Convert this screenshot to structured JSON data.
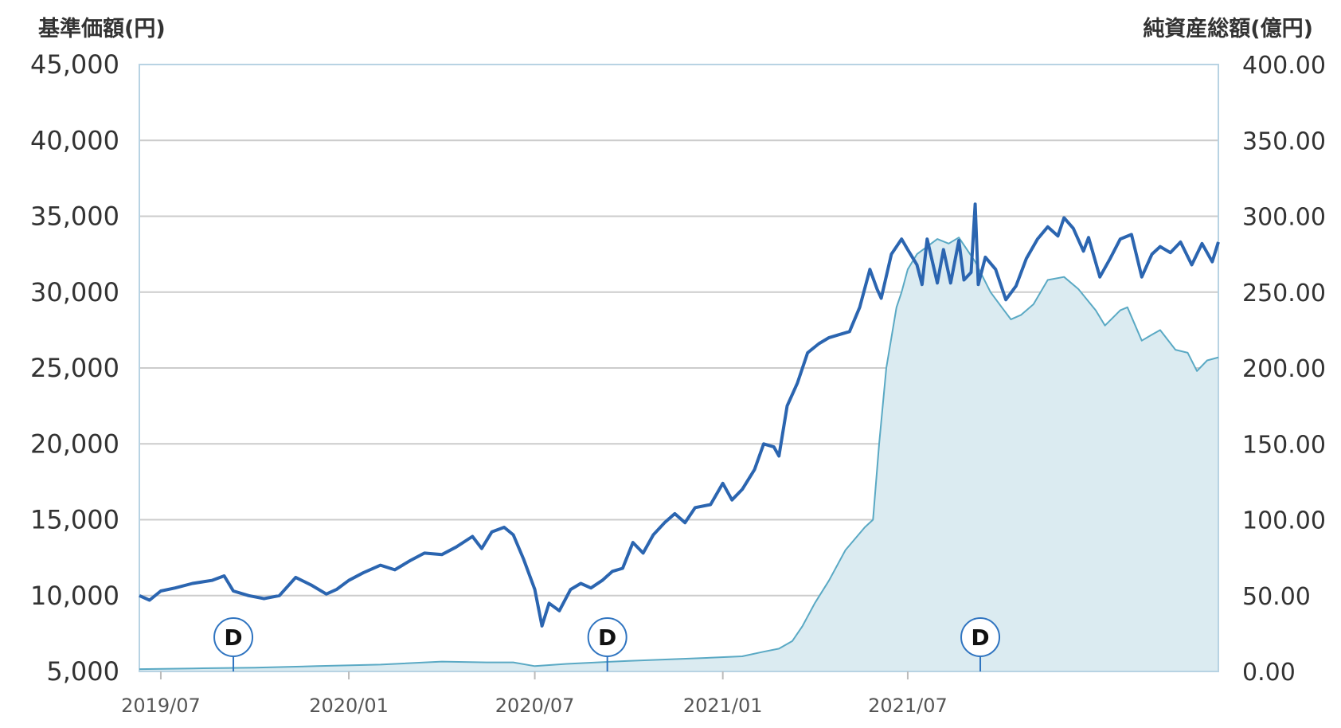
{
  "chart_data": {
    "type": "line",
    "left_axis_title": "基準価額(円)",
    "right_axis_title": "純資産総額(億円)",
    "left_ticks": [
      "45,000",
      "40,000",
      "35,000",
      "30,000",
      "25,000",
      "20,000",
      "15,000",
      "10,000",
      "5,000"
    ],
    "right_ticks": [
      "400.00",
      "350.00",
      "300.00",
      "250.00",
      "200.00",
      "150.00",
      "100.00",
      "50.00",
      "0.00"
    ],
    "x_ticks": [
      "2019/07",
      "2020/01",
      "2020/07",
      "2021/01",
      "2021/07"
    ],
    "left_ylim": [
      5000,
      45000
    ],
    "right_ylim": [
      0,
      400
    ],
    "grid": true,
    "dividend_marker_label": "D",
    "dividend_markers": [
      "2019/09",
      "2020/09",
      "2021/09"
    ],
    "colors": {
      "nav_line": "#2b65b0",
      "assets_line": "#5aa9c4",
      "assets_fill": "#dbebf1",
      "grid": "#cccccc",
      "frame": "#b8d3e3",
      "marker_stroke": "#2f74c0"
    },
    "series": [
      {
        "axis": "left",
        "points": [
          [
            "2019/06/10",
            10000
          ],
          [
            "2019/06/20",
            9700
          ],
          [
            "2019/07/01",
            10300
          ],
          [
            "2019/07/15",
            10500
          ],
          [
            "2019/08/01",
            10800
          ],
          [
            "2019/08/20",
            11000
          ],
          [
            "2019/09/01",
            11300
          ],
          [
            "2019/09/10",
            10300
          ],
          [
            "2019/09/25",
            10000
          ],
          [
            "2019/10/10",
            9800
          ],
          [
            "2019/10/25",
            10000
          ],
          [
            "2019/11/10",
            11200
          ],
          [
            "2019/11/25",
            10700
          ],
          [
            "2019/12/10",
            10100
          ],
          [
            "2019/12/20",
            10400
          ],
          [
            "2020/01/01",
            11000
          ],
          [
            "2020/01/15",
            11500
          ],
          [
            "2020/02/01",
            12000
          ],
          [
            "2020/02/15",
            11700
          ],
          [
            "2020/03/01",
            12300
          ],
          [
            "2020/03/15",
            12800
          ],
          [
            "2020/04/01",
            12700
          ],
          [
            "2020/04/15",
            13200
          ],
          [
            "2020/05/01",
            13900
          ],
          [
            "2020/05/10",
            13100
          ],
          [
            "2020/05/20",
            14200
          ],
          [
            "2020/06/01",
            14500
          ],
          [
            "2020/06/10",
            14000
          ],
          [
            "2020/06/20",
            12400
          ],
          [
            "2020/07/01",
            10400
          ],
          [
            "2020/07/08",
            8000
          ],
          [
            "2020/07/15",
            9500
          ],
          [
            "2020/07/25",
            9000
          ],
          [
            "2020/08/05",
            10400
          ],
          [
            "2020/08/15",
            10800
          ],
          [
            "2020/08/25",
            10500
          ],
          [
            "2020/09/05",
            11000
          ],
          [
            "2020/09/15",
            11600
          ],
          [
            "2020/09/25",
            11800
          ],
          [
            "2020/10/05",
            13500
          ],
          [
            "2020/10/15",
            12800
          ],
          [
            "2020/10/25",
            14000
          ],
          [
            "2020/11/05",
            14800
          ],
          [
            "2020/11/15",
            15400
          ],
          [
            "2020/11/25",
            14800
          ],
          [
            "2020/12/05",
            15800
          ],
          [
            "2020/12/20",
            16000
          ],
          [
            "2021/01/01",
            17400
          ],
          [
            "2021/01/10",
            16300
          ],
          [
            "2021/01/20",
            17000
          ],
          [
            "2021/02/01",
            18300
          ],
          [
            "2021/02/10",
            20000
          ],
          [
            "2021/02/20",
            19800
          ],
          [
            "2021/02/25",
            19200
          ],
          [
            "2021/03/05",
            22500
          ],
          [
            "2021/03/15",
            24000
          ],
          [
            "2021/03/25",
            26000
          ],
          [
            "2021/04/05",
            26600
          ],
          [
            "2021/04/15",
            27000
          ],
          [
            "2021/04/25",
            27200
          ],
          [
            "2021/05/05",
            27400
          ],
          [
            "2021/05/15",
            29000
          ],
          [
            "2021/05/25",
            31500
          ],
          [
            "2021/06/01",
            30200
          ],
          [
            "2021/06/05",
            29600
          ],
          [
            "2021/06/15",
            32500
          ],
          [
            "2021/06/25",
            33500
          ],
          [
            "2021/07/01",
            32800
          ],
          [
            "2021/07/10",
            31800
          ],
          [
            "2021/07/15",
            30500
          ],
          [
            "2021/07/20",
            33500
          ],
          [
            "2021/07/30",
            30600
          ],
          [
            "2021/08/05",
            32800
          ],
          [
            "2021/08/12",
            30600
          ],
          [
            "2021/08/20",
            33400
          ],
          [
            "2021/08/25",
            30800
          ],
          [
            "2021/09/01",
            31300
          ],
          [
            "2021/09/05",
            35800
          ],
          [
            "2021/09/08",
            30500
          ],
          [
            "2021/09/15",
            32300
          ],
          [
            "2021/09/25",
            31500
          ],
          [
            "2021/10/05",
            29500
          ],
          [
            "2021/10/15",
            30400
          ],
          [
            "2021/10/25",
            32200
          ],
          [
            "2021/11/05",
            33500
          ],
          [
            "2021/11/15",
            34300
          ],
          [
            "2021/11/25",
            33700
          ],
          [
            "2021/12/01",
            34900
          ],
          [
            "2021/12/10",
            34200
          ],
          [
            "2021/12/20",
            32700
          ],
          [
            "2021/12/25",
            33600
          ],
          [
            "2022/01/05",
            31000
          ],
          [
            "2022/01/15",
            32200
          ],
          [
            "2022/01/25",
            33500
          ],
          [
            "2022/02/05",
            33800
          ],
          [
            "2022/02/15",
            31000
          ],
          [
            "2022/02/25",
            32500
          ],
          [
            "2022/03/05",
            33000
          ],
          [
            "2022/03/15",
            32600
          ],
          [
            "2022/03/25",
            33300
          ],
          [
            "2022/04/05",
            31800
          ],
          [
            "2022/04/15",
            33200
          ],
          [
            "2022/04/25",
            32000
          ],
          [
            "2022/05/01",
            33300
          ]
        ]
      },
      {
        "axis": "right",
        "points": [
          [
            "2019/06/10",
            1.5
          ],
          [
            "2019/08/01",
            2
          ],
          [
            "2019/10/01",
            2.5
          ],
          [
            "2019/12/01",
            3.5
          ],
          [
            "2020/02/01",
            4.5
          ],
          [
            "2020/04/01",
            6.5
          ],
          [
            "2020/05/15",
            6
          ],
          [
            "2020/06/10",
            6
          ],
          [
            "2020/07/01",
            3.5
          ],
          [
            "2020/08/01",
            5
          ],
          [
            "2020/10/01",
            7
          ],
          [
            "2020/12/01",
            8.5
          ],
          [
            "2021/01/20",
            10
          ],
          [
            "2021/02/10",
            13
          ],
          [
            "2021/02/25",
            15
          ],
          [
            "2021/03/10",
            20
          ],
          [
            "2021/03/20",
            30
          ],
          [
            "2021/04/01",
            45
          ],
          [
            "2021/04/15",
            60
          ],
          [
            "2021/05/01",
            80
          ],
          [
            "2021/05/20",
            95
          ],
          [
            "2021/05/28",
            100
          ],
          [
            "2021/06/03",
            150
          ],
          [
            "2021/06/10",
            200
          ],
          [
            "2021/06/15",
            220
          ],
          [
            "2021/06/20",
            240
          ],
          [
            "2021/06/25",
            250
          ],
          [
            "2021/07/01",
            265
          ],
          [
            "2021/07/10",
            275
          ],
          [
            "2021/07/20",
            280
          ],
          [
            "2021/07/30",
            285
          ],
          [
            "2021/08/10",
            282
          ],
          [
            "2021/08/20",
            286
          ],
          [
            "2021/09/05",
            270
          ],
          [
            "2021/09/20",
            250
          ],
          [
            "2021/10/01",
            240
          ],
          [
            "2021/10/10",
            232
          ],
          [
            "2021/10/20",
            235
          ],
          [
            "2021/11/01",
            242
          ],
          [
            "2021/11/15",
            258
          ],
          [
            "2021/12/01",
            260
          ],
          [
            "2021/12/15",
            252
          ],
          [
            "2022/01/01",
            238
          ],
          [
            "2022/01/10",
            228
          ],
          [
            "2022/01/25",
            238
          ],
          [
            "2022/02/01",
            240
          ],
          [
            "2022/02/15",
            218
          ],
          [
            "2022/02/25",
            222
          ],
          [
            "2022/03/05",
            225
          ],
          [
            "2022/03/20",
            212
          ],
          [
            "2022/04/01",
            210
          ],
          [
            "2022/04/10",
            198
          ],
          [
            "2022/04/20",
            205
          ],
          [
            "2022/05/01",
            207
          ]
        ]
      }
    ]
  }
}
